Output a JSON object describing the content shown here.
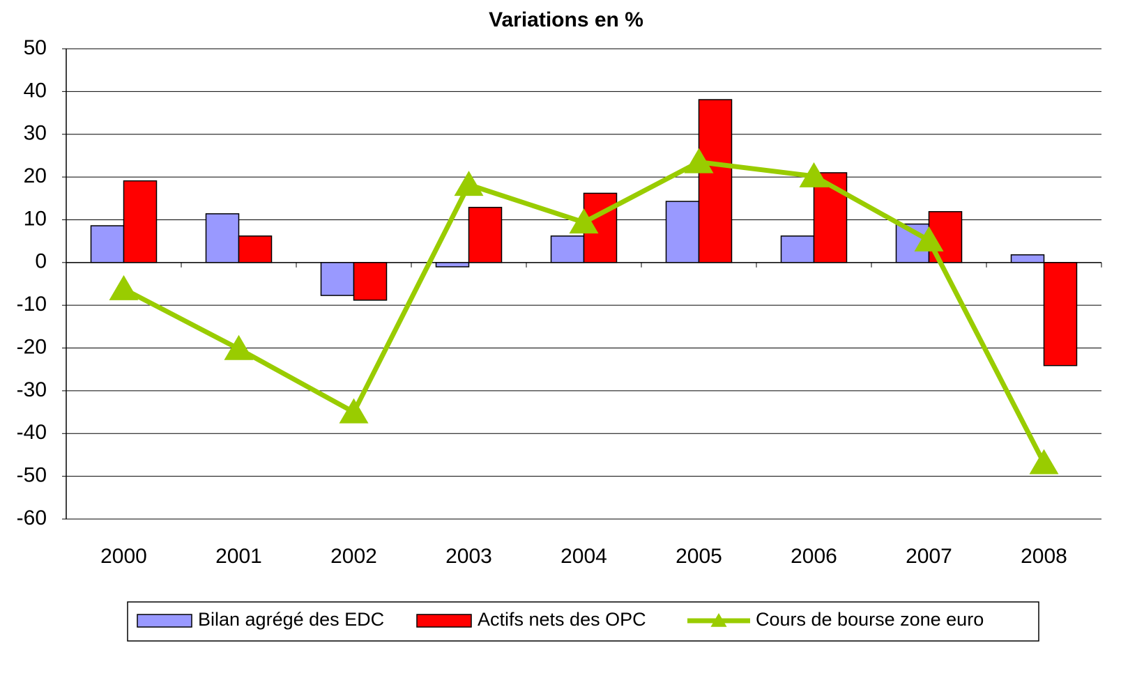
{
  "chart_data": {
    "type": "bar_line",
    "title": "Variations en %",
    "categories": [
      "2000",
      "2001",
      "2002",
      "2003",
      "2004",
      "2005",
      "2006",
      "2007",
      "2008"
    ],
    "series": [
      {
        "name": "Bilan agrégé des EDC",
        "type": "bar",
        "color": "#9999ff",
        "values": [
          8.6,
          11.4,
          -7.7,
          -1,
          6.2,
          14.3,
          6.2,
          9,
          1.8
        ]
      },
      {
        "name": "Actifs nets des OPC",
        "type": "bar",
        "color": "#ff0000",
        "values": [
          19.1,
          6.2,
          -8.8,
          12.9,
          16.2,
          38.1,
          21,
          11.9,
          -24.1
        ]
      },
      {
        "name": "Cours de bourse zone euro",
        "type": "line",
        "color": "#99cc00",
        "values": [
          -6.2,
          -20.2,
          -35,
          18.2,
          9.4,
          23.5,
          20.2,
          5.2,
          -46.9
        ]
      }
    ],
    "ylim": [
      -60,
      50
    ],
    "yticks": [
      -60,
      -50,
      -40,
      -30,
      -20,
      -10,
      0,
      10,
      20,
      30,
      40,
      50
    ],
    "grid": true
  }
}
